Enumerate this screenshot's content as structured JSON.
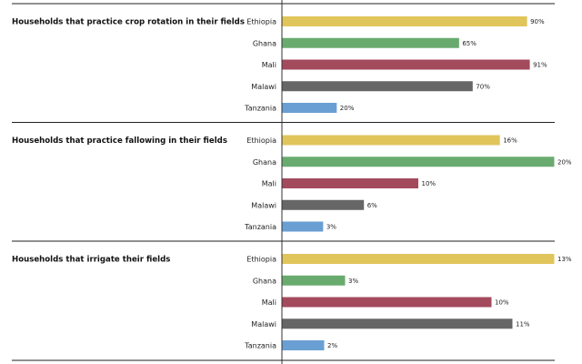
{
  "chart_data": {
    "type": "bar",
    "orientation": "horizontal",
    "categories": [
      "Ethiopia",
      "Ghana",
      "Mali",
      "Malawi",
      "Tanzania"
    ],
    "colors": [
      "#e0c55b",
      "#69ab6f",
      "#a34a5c",
      "#666666",
      "#6a9fd3"
    ],
    "panels": [
      {
        "title": "Households that practice crop rotation in their fields",
        "values": [
          90,
          65,
          91,
          70,
          20
        ],
        "labels": [
          "90%",
          "65%",
          "91%",
          "70%",
          "20%"
        ],
        "xlim": [
          0,
          100
        ]
      },
      {
        "title": "Households that practice fallowing in their fields",
        "values": [
          16,
          20,
          10,
          6,
          3
        ],
        "labels": [
          "16%",
          "20%",
          "10%",
          "6%",
          "3%"
        ],
        "xlim": [
          0,
          20
        ]
      },
      {
        "title": "Households that irrigate their fields",
        "values": [
          13,
          3,
          10,
          11,
          2
        ],
        "labels": [
          "13%",
          "3%",
          "10%",
          "11%",
          "2%"
        ],
        "xlim": [
          0,
          13
        ]
      }
    ],
    "unit": "%",
    "grid": false,
    "legend": "none"
  }
}
